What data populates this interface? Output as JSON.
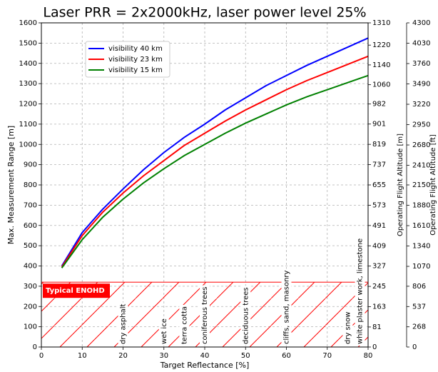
{
  "chart_data": {
    "type": "line",
    "title": "Laser PRR = 2x2000kHz, laser power level 25%",
    "x_label": "Target Reflectance [%]",
    "y_label": "Max. Measurement Range [m]",
    "y2_label": "Operating Flight Altitude [m]",
    "y3_label": "Operating Flight Altitude [ft]",
    "x": [
      5,
      10,
      15,
      20,
      25,
      30,
      35,
      40,
      45,
      50,
      55,
      60,
      65,
      70,
      75,
      80
    ],
    "series": [
      {
        "name": "visibility 40 km",
        "color": "#0000ff",
        "values": [
          400,
          565,
          680,
          780,
          875,
          960,
          1035,
          1100,
          1170,
          1230,
          1290,
          1340,
          1390,
          1435,
          1480,
          1525
        ]
      },
      {
        "name": "visibility 23 km",
        "color": "#ff0000",
        "values": [
          395,
          550,
          665,
          760,
          845,
          920,
          995,
          1055,
          1115,
          1170,
          1220,
          1270,
          1315,
          1355,
          1395,
          1435
        ]
      },
      {
        "name": "visibility 15 km",
        "color": "#008000",
        "values": [
          390,
          530,
          640,
          730,
          810,
          880,
          945,
          1000,
          1055,
          1105,
          1150,
          1195,
          1235,
          1270,
          1305,
          1340
        ]
      }
    ],
    "xlim": [
      0,
      80
    ],
    "xticks": [
      0,
      10,
      20,
      30,
      40,
      50,
      60,
      70,
      80
    ],
    "ylim": [
      0,
      1600
    ],
    "yticks": [
      0,
      100,
      200,
      300,
      400,
      500,
      600,
      700,
      800,
      900,
      1000,
      1100,
      1200,
      1300,
      1400,
      1500,
      1600
    ],
    "y2lim": [
      0,
      1310
    ],
    "y2ticks": [
      0,
      81,
      163,
      245,
      327,
      409,
      491,
      573,
      655,
      737,
      819,
      901,
      982,
      1060,
      1140,
      1220,
      1310
    ],
    "y3lim": [
      0,
      4300
    ],
    "y3ticks": [
      0,
      268,
      537,
      806,
      1070,
      1340,
      1610,
      1880,
      2150,
      2410,
      2680,
      2950,
      3220,
      3490,
      3760,
      4030,
      4300
    ],
    "grid": true,
    "legend": "upper left",
    "region": {
      "label": "Typical ENOHD",
      "ymax": 320,
      "color": "#ff0000"
    },
    "annotations": [
      {
        "text": "dry asphalt",
        "x": 20
      },
      {
        "text": "wet ice",
        "x": 30
      },
      {
        "text": "terra cotta",
        "x": 35
      },
      {
        "text": "coniferous trees",
        "x": 40
      },
      {
        "text": "deciduous trees",
        "x": 50
      },
      {
        "text": "cliffs, sand, masonry",
        "x": 60
      },
      {
        "text": "dry snow",
        "x": 75
      },
      {
        "text": "white plaster work, limestone",
        "x": 78
      }
    ]
  }
}
